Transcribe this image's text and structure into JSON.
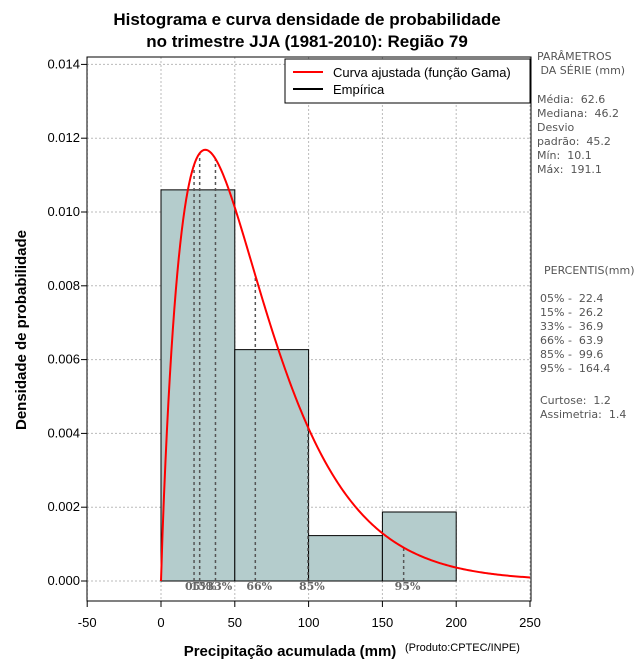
{
  "chart_data": {
    "type": "histogram",
    "title_line1": "Histograma e curva densidade de probabilidade",
    "title_line2": "no trimestre JJA (1981-2010): Região 79",
    "xlabel": "Precipitação acumulada (mm)",
    "ylabel": "Densidade de probabilidade",
    "credit": "(Produto:CPTEC/INPE)",
    "xlim": [
      -50,
      250
    ],
    "ylim": [
      0,
      0.0142
    ],
    "x_ticks": [
      -50,
      0,
      50,
      100,
      150,
      200,
      250
    ],
    "y_ticks": [
      0.0,
      0.002,
      0.004,
      0.006,
      0.008,
      0.01,
      0.012,
      0.014
    ],
    "y_tick_labels": [
      "0.000",
      "0.002",
      "0.004",
      "0.006",
      "0.008",
      "0.010",
      "0.012",
      "0.014"
    ],
    "bins": [
      {
        "x0": 0,
        "x1": 50,
        "density": 0.0106
      },
      {
        "x0": 50,
        "x1": 100,
        "density": 0.00627
      },
      {
        "x0": 100,
        "x1": 150,
        "density": 0.00123
      },
      {
        "x0": 150,
        "x1": 200,
        "density": 0.00187
      }
    ],
    "gamma_fit": {
      "name": "Curva ajustada (função Gama)",
      "shape": 1.92,
      "scale": 32.6,
      "color": "#ff0000"
    },
    "percentile_lines": [
      {
        "label": "05%",
        "value": 22.4
      },
      {
        "label": "15%",
        "value": 26.2
      },
      {
        "label": "33%",
        "value": 36.9
      },
      {
        "label": "66%",
        "value": 63.9
      },
      {
        "label": "85%",
        "value": 99.6
      },
      {
        "label": "95%",
        "value": 164.4
      }
    ],
    "legend": [
      {
        "label": "Curva ajustada (função Gama)",
        "color": "#ff0000"
      },
      {
        "label": "Empírica",
        "color": "#000000"
      }
    ],
    "legend_position": "top-right",
    "grid": true,
    "colors": {
      "bar_fill": "#b4cccc",
      "curve": "#ff0000",
      "grid": "#bbbbbb",
      "percentile_line": "#555555"
    }
  },
  "side_panel": {
    "params_title": "PARÂMETROS\n DA SÉRIE (mm)",
    "stats": "Média:  62.6\nMediana:  46.2\nDesvio\npadrão:  45.2\nMín:  10.1\nMáx:  191.1",
    "percentis_title": "PERCENTIS(mm)",
    "percentis": "05% -  22.4\n15% -  26.2\n33% -  36.9\n66% -  63.9\n85% -  99.6\n95% -  164.4",
    "shape_stats": "Curtose:  1.2\nAssimetria:  1.4"
  }
}
